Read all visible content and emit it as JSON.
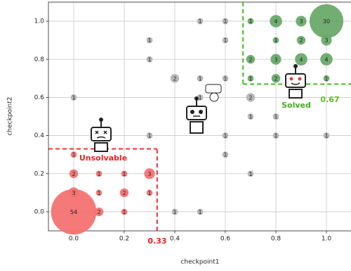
{
  "chart_data": {
    "type": "bubble",
    "xlabel": "checkpoint1",
    "ylabel": "checkpoint2",
    "xlim": [
      -0.1,
      1.1
    ],
    "ylim": [
      -0.1,
      1.1
    ],
    "xticks": [
      {
        "value": 0,
        "label": "0.0"
      },
      0.2,
      0.4,
      0.6,
      0.8,
      {
        "value": 1,
        "label": "1.0"
      }
    ],
    "yticks": [
      {
        "value": 0,
        "label": "0.0"
      },
      0.2,
      0.4,
      0.6,
      0.8,
      {
        "value": 1,
        "label": "1.0"
      }
    ],
    "grid": true,
    "series": [
      {
        "color": "#f47272",
        "x": [
          0,
          0.1,
          0.2,
          0,
          0.1,
          0.2,
          0.3,
          0,
          0.1,
          0.2,
          0.3,
          0
        ],
        "values": [
          0,
          0,
          0,
          0.1,
          0.1,
          0.1,
          0.1,
          0.2,
          0.2,
          0.2,
          0.2,
          0.3
        ],
        "sizes": [
          54,
          2,
          1,
          3,
          1,
          2,
          1,
          2,
          1,
          1,
          3,
          1
        ]
      },
      {
        "color": "#b4b4b4",
        "x": [
          0.4,
          0.5,
          0.3,
          0,
          0.3,
          0.3,
          0.4,
          0.5,
          0.5,
          0.5,
          0.6,
          0.6,
          0.6,
          0.6,
          0.6,
          0.7,
          0.7,
          0.7,
          0.8,
          0.8,
          1.0
        ],
        "values": [
          0,
          0,
          0.4,
          0.6,
          0.8,
          0.9,
          0.7,
          0.7,
          0.6,
          1.0,
          1.0,
          0.9,
          0.7,
          0.4,
          0.3,
          0.6,
          0.5,
          0.2,
          0.5,
          0.4,
          0.4
        ],
        "sizes": [
          1,
          1,
          1,
          1,
          1,
          1,
          2,
          1,
          1,
          1,
          1,
          1,
          1,
          1,
          1,
          2,
          1,
          1,
          1,
          1,
          1
        ]
      },
      {
        "color": "#6aaa6a",
        "x": [
          0.7,
          0.8,
          0.9,
          1.0,
          0.8,
          0.9,
          1.0,
          0.7,
          0.8,
          0.9,
          1.0,
          0.7,
          0.8,
          0.9,
          1.0
        ],
        "values": [
          1.0,
          1.0,
          1.0,
          1.0,
          0.9,
          0.9,
          0.9,
          0.8,
          0.8,
          0.8,
          0.8,
          0.7,
          0.7,
          0.7,
          0.7
        ],
        "sizes": [
          1,
          4,
          3,
          30,
          1,
          2,
          3,
          2,
          3,
          4,
          4,
          1,
          2,
          1,
          1
        ]
      }
    ],
    "thresholds": [
      {
        "value": 0.33,
        "color": "#f03030",
        "side": "low"
      },
      {
        "value": 0.67,
        "color": "#44bb22",
        "side": "high"
      }
    ],
    "annotations": [
      "Unsolvable",
      "Solved",
      "0.33",
      "0.67"
    ]
  }
}
